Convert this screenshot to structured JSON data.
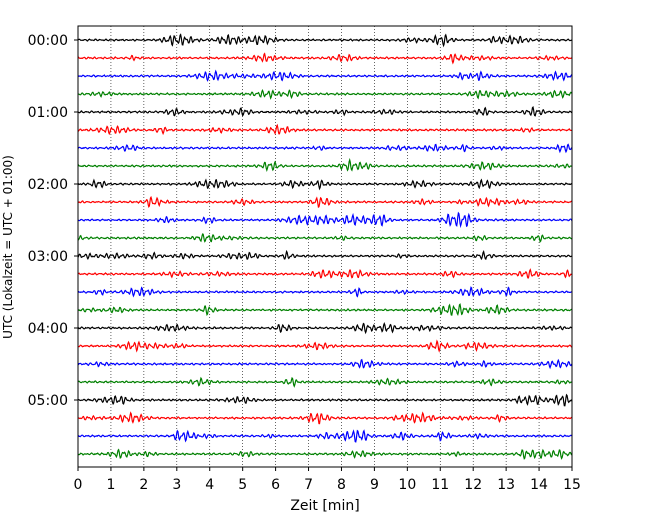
{
  "chart_data": {
    "type": "line",
    "title": "",
    "xlabel": "Zeit  [min]",
    "ylabel": "UTC (Lokalzeit = UTC + 01:00)",
    "xlim": [
      0,
      15
    ],
    "x_ticks": [
      "0",
      "1",
      "2",
      "3",
      "4",
      "5",
      "6",
      "7",
      "8",
      "9",
      "10",
      "11",
      "12",
      "13",
      "14",
      "15"
    ],
    "y_ticks": [
      "00:00",
      "01:00",
      "02:00",
      "03:00",
      "04:00",
      "05:00"
    ],
    "trace_interval_min": 15,
    "trace_count": 24,
    "trace_colors": [
      "#000000",
      "#ff0000",
      "#0000ff",
      "#008000"
    ],
    "x_grid": "dotted vertical lines at each minute",
    "y_grid": false,
    "legend": "none"
  }
}
